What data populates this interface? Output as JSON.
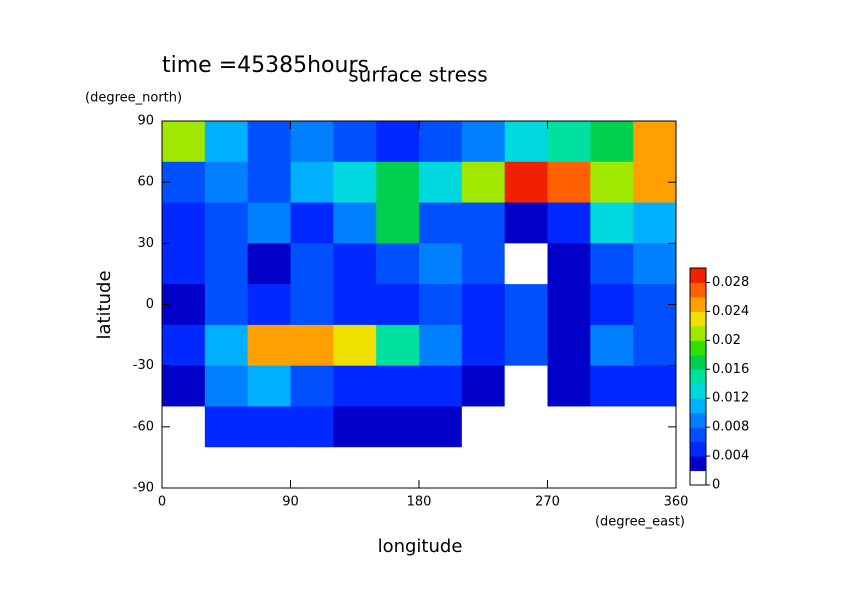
{
  "chart_data": {
    "type": "heatmap",
    "title": "surface stress",
    "subtitle": "time =45385hours",
    "x_label": "longitude",
    "x_units": "(degree_east)",
    "y_label": "latitude",
    "y_units": "(degree_north)",
    "x": [
      15,
      45,
      75,
      105,
      135,
      165,
      195,
      225,
      255,
      285,
      315,
      345
    ],
    "y": [
      80,
      60,
      40,
      20,
      0,
      -20,
      -40,
      -60,
      -80
    ],
    "z": [
      [
        0.02,
        0.01,
        0.006,
        0.008,
        0.006,
        0.004,
        0.006,
        0.008,
        0.012,
        0.014,
        0.016,
        0.024
      ],
      [
        0.006,
        0.008,
        0.006,
        0.01,
        0.012,
        0.016,
        0.012,
        0.02,
        0.03,
        0.026,
        0.02,
        0.024
      ],
      [
        0.004,
        0.006,
        0.008,
        0.004,
        0.008,
        0.016,
        0.006,
        0.006,
        0.002,
        0.004,
        0.012,
        0.01
      ],
      [
        0.004,
        0.006,
        0.002,
        0.006,
        0.004,
        0.006,
        0.008,
        0.006,
        0,
        0.002,
        0.006,
        0.008
      ],
      [
        0.002,
        0.006,
        0.004,
        0.006,
        0.004,
        0.004,
        0.006,
        0.004,
        0.006,
        0.002,
        0.004,
        0.006
      ],
      [
        0.004,
        0.01,
        0.024,
        0.024,
        0.022,
        0.014,
        0.008,
        0.004,
        0.006,
        0.002,
        0.008,
        0.006
      ],
      [
        0.002,
        0.008,
        0.01,
        0.006,
        0.004,
        0.004,
        0.004,
        0.002,
        0,
        0.002,
        0.004,
        0.004
      ],
      [
        0,
        0.004,
        0.004,
        0.004,
        0.002,
        0.002,
        0.002,
        0,
        0,
        0,
        0,
        0
      ],
      [
        0,
        0,
        0,
        0,
        0,
        0,
        0,
        0,
        0,
        0,
        0,
        0
      ]
    ],
    "xlim": [
      0,
      360
    ],
    "xticks": [
      0,
      90,
      180,
      270,
      360
    ],
    "ylim": [
      -90,
      90
    ],
    "yticks": [
      -90,
      -60,
      -30,
      0,
      30,
      60,
      90
    ],
    "clim": [
      0,
      0.03
    ],
    "cticks": [
      0,
      0.004,
      0.008,
      0.012,
      0.016,
      0.02,
      0.024,
      0.028
    ],
    "colors": [
      "#ffffff",
      "#0000c8",
      "#0028ff",
      "#0050ff",
      "#0080ff",
      "#00b0ff",
      "#00d8e0",
      "#00e0a0",
      "#00d050",
      "#30e000",
      "#a0e800",
      "#f0e000",
      "#ffa000",
      "#ff6000",
      "#f02000"
    ]
  }
}
